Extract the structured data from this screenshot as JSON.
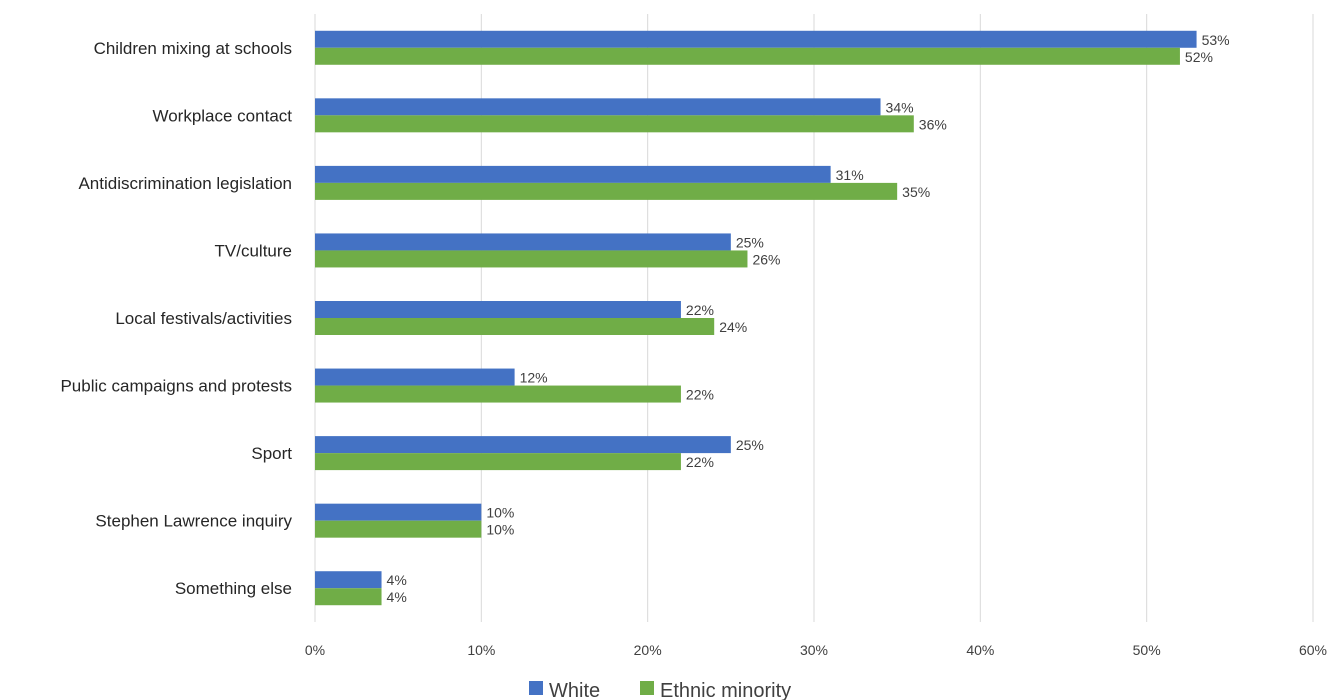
{
  "chart_data": {
    "type": "bar",
    "orientation": "horizontal",
    "categories": [
      "Children mixing at schools",
      "Workplace contact",
      "Antidiscrimination legislation",
      "TV/culture",
      "Local festivals/activities",
      "Public campaigns and protests",
      "Sport",
      "Stephen Lawrence inquiry",
      "Something else"
    ],
    "series": [
      {
        "name": "White",
        "color": "#4472C4",
        "values": [
          53,
          34,
          31,
          25,
          22,
          12,
          25,
          10,
          4
        ],
        "labels": [
          "53%",
          "34%",
          "31%",
          "25%",
          "22%",
          "12%",
          "25%",
          "10%",
          "4%"
        ]
      },
      {
        "name": "Ethnic minority",
        "color": "#70AD47",
        "values": [
          52,
          36,
          35,
          26,
          24,
          22,
          22,
          10,
          4
        ],
        "labels": [
          "52%",
          "36%",
          "35%",
          "26%",
          "24%",
          "22%",
          "22%",
          "10%",
          "4%"
        ]
      }
    ],
    "xlim": [
      0,
      60
    ],
    "xticks": [
      0,
      10,
      20,
      30,
      40,
      50,
      60
    ],
    "xtick_labels": [
      "0%",
      "10%",
      "20%",
      "30%",
      "40%",
      "50%",
      "60%"
    ],
    "grid": true,
    "legend_position": "bottom",
    "title": "",
    "xlabel": "",
    "ylabel": ""
  }
}
